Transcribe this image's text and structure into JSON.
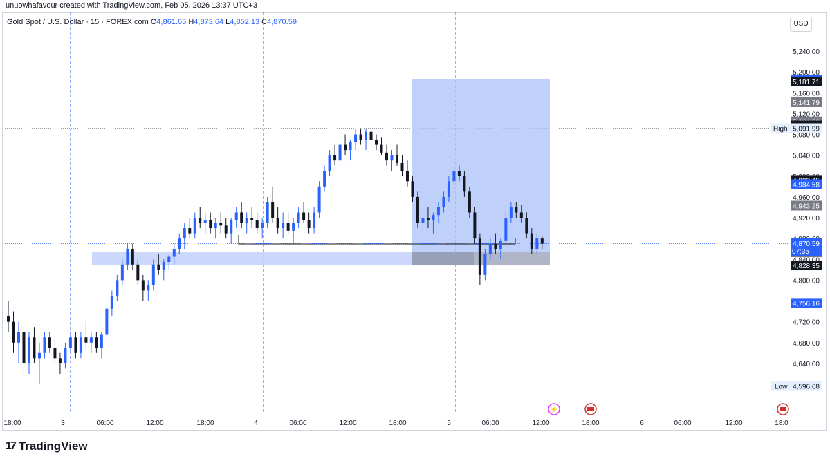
{
  "header": {
    "attribution": "unuowhafavour created with TradingView.com, Feb 05, 2026 13:37 UTC+3"
  },
  "legend": {
    "symbol": "Gold Spot / U.S. Dollar · 15 · FOREX.com",
    "o_label": "O",
    "o_value": "4,861.65",
    "h_label": "H",
    "h_value": "4,873.64",
    "l_label": "L",
    "l_value": "4,852.13",
    "c_label": "C",
    "c_value": "4,870.59"
  },
  "currency_button": "USD",
  "branding": {
    "name": "TradingView",
    "mark": "17"
  },
  "colors": {
    "up_candle": "#2962ff",
    "down_candle": "#131722",
    "zone_fill": "#c5d3fb",
    "box_fill": "#a9c0f8",
    "gray_zone": "#9e9e9e",
    "price_line": "#2962ff",
    "session_line": "#2962ff"
  },
  "chart_data": {
    "type": "candlestick",
    "symbol": "XAUUSD",
    "interval": "15",
    "y_axis_ticks": [
      5240,
      5200,
      5160,
      5120,
      5080,
      5040,
      5000,
      4960,
      4920,
      4880,
      4840,
      4800,
      4760,
      4720,
      4680,
      4640,
      4600
    ],
    "y_axis_tick_labels": [
      "5,240.00",
      "5,200.00",
      "5,160.00",
      "5,120.00",
      "5,080.00",
      "5,040.00",
      "5,000.00",
      "4,960.00",
      "4,920.00",
      "4,880.00",
      "4,840.00",
      "4,800.00",
      "4,760.00",
      "4,720.00",
      "4,680.00",
      "4,640.00",
      "4,600.00"
    ],
    "ylim": [
      4590,
      5260
    ],
    "x_ticks": [
      "18:00",
      "3",
      "06:00",
      "12:00",
      "18:00",
      "4",
      "06:00",
      "12:00",
      "18:00",
      "5",
      "06:00",
      "12:00",
      "18:00",
      "6",
      "06:00",
      "12:00",
      "18:0"
    ],
    "session_breaks": [
      "3",
      "4",
      "5"
    ],
    "high": {
      "label": "High",
      "value": "5,091.99",
      "price": 5091.99
    },
    "low": {
      "label": "Low",
      "value": "4,596.68",
      "price": 4596.68
    },
    "current_price": {
      "value": "4,870.59",
      "countdown": "07:35",
      "price": 4870.59
    },
    "price_labels": [
      {
        "value": "5,185.72",
        "price": 5185.72,
        "style": "blue"
      },
      {
        "value": "5,181.71",
        "price": 5181.71,
        "style": "black"
      },
      {
        "value": "5,141.79",
        "price": 5141.79,
        "style": "gray"
      },
      {
        "value": "5,104.98",
        "price": 5104.98,
        "style": "gray"
      },
      {
        "value": "5,097.24",
        "price": 5097.24,
        "style": "black"
      },
      {
        "value": "4,992.45",
        "price": 4992.45,
        "style": "black"
      },
      {
        "value": "4,984.58",
        "price": 4984.58,
        "style": "blue"
      },
      {
        "value": "4,943.25",
        "price": 4943.25,
        "style": "gray"
      },
      {
        "value": "4,853.55",
        "price": 4853.55,
        "style": "gray"
      },
      {
        "value": "4,828.35",
        "price": 4828.35,
        "style": "black"
      },
      {
        "value": "4,756.16",
        "price": 4756.16,
        "style": "blue"
      }
    ],
    "drawings": {
      "demand_zone": {
        "from": "3 03:30",
        "to": "5 13:00",
        "top": 4853.55,
        "bottom": 4828.35
      },
      "target_box": {
        "from": "4 21:00",
        "to": "5 13:00",
        "top": 5185.72,
        "bottom": 4828.35
      },
      "gray_zone": {
        "from": "4 21:00",
        "to": "5 13:00",
        "top": 4853.55,
        "bottom": 4828.35
      },
      "level_line": {
        "from": "4 00:00",
        "to": "5 11:00",
        "price": 4880
      }
    },
    "candles": [
      [
        4730,
        4760,
        4700,
        4720
      ],
      [
        4720,
        4740,
        4660,
        4680
      ],
      [
        4680,
        4720,
        4640,
        4700
      ],
      [
        4700,
        4710,
        4610,
        4640
      ],
      [
        4640,
        4700,
        4620,
        4690
      ],
      [
        4690,
        4710,
        4640,
        4650
      ],
      [
        4650,
        4680,
        4600,
        4660
      ],
      [
        4660,
        4700,
        4650,
        4690
      ],
      [
        4690,
        4700,
        4660,
        4670
      ],
      [
        4670,
        4690,
        4640,
        4650
      ],
      [
        4650,
        4660,
        4620,
        4640
      ],
      [
        4640,
        4680,
        4630,
        4670
      ],
      [
        4670,
        4700,
        4660,
        4690
      ],
      [
        4690,
        4700,
        4650,
        4660
      ],
      [
        4660,
        4700,
        4650,
        4690
      ],
      [
        4690,
        4720,
        4670,
        4680
      ],
      [
        4680,
        4700,
        4660,
        4690
      ],
      [
        4690,
        4700,
        4660,
        4670
      ],
      [
        4670,
        4700,
        4650,
        4695
      ],
      [
        4695,
        4750,
        4690,
        4745
      ],
      [
        4745,
        4780,
        4730,
        4770
      ],
      [
        4770,
        4810,
        4760,
        4800
      ],
      [
        4800,
        4840,
        4790,
        4830
      ],
      [
        4830,
        4870,
        4820,
        4860
      ],
      [
        4860,
        4870,
        4820,
        4830
      ],
      [
        4830,
        4840,
        4790,
        4800
      ],
      [
        4800,
        4810,
        4760,
        4780
      ],
      [
        4780,
        4800,
        4760,
        4790
      ],
      [
        4790,
        4840,
        4780,
        4830
      ],
      [
        4830,
        4850,
        4810,
        4820
      ],
      [
        4820,
        4840,
        4800,
        4835
      ],
      [
        4835,
        4850,
        4820,
        4845
      ],
      [
        4845,
        4870,
        4830,
        4860
      ],
      [
        4860,
        4890,
        4850,
        4880
      ],
      [
        4880,
        4910,
        4860,
        4900
      ],
      [
        4900,
        4920,
        4880,
        4890
      ],
      [
        4890,
        4930,
        4880,
        4920
      ],
      [
        4920,
        4940,
        4900,
        4910
      ],
      [
        4910,
        4930,
        4890,
        4915
      ],
      [
        4915,
        4930,
        4890,
        4900
      ],
      [
        4900,
        4920,
        4880,
        4910
      ],
      [
        4910,
        4930,
        4890,
        4905
      ],
      [
        4905,
        4920,
        4880,
        4890
      ],
      [
        4890,
        4920,
        4870,
        4915
      ],
      [
        4915,
        4940,
        4900,
        4930
      ],
      [
        4930,
        4950,
        4900,
        4910
      ],
      [
        4910,
        4930,
        4890,
        4920
      ],
      [
        4920,
        4940,
        4900,
        4915
      ],
      [
        4915,
        4930,
        4890,
        4900
      ],
      [
        4900,
        4920,
        4880,
        4910
      ],
      [
        4910,
        4960,
        4900,
        4950
      ],
      [
        4950,
        4980,
        4910,
        4920
      ],
      [
        4920,
        4940,
        4890,
        4900
      ],
      [
        4900,
        4930,
        4880,
        4910
      ],
      [
        4910,
        4930,
        4890,
        4895
      ],
      [
        4895,
        4920,
        4870,
        4910
      ],
      [
        4910,
        4940,
        4900,
        4930
      ],
      [
        4930,
        4950,
        4910,
        4915
      ],
      [
        4915,
        4930,
        4890,
        4900
      ],
      [
        4900,
        4940,
        4890,
        4930
      ],
      [
        4930,
        4990,
        4920,
        4980
      ],
      [
        4980,
        5020,
        4970,
        5010
      ],
      [
        5010,
        5050,
        5000,
        5040
      ],
      [
        5040,
        5060,
        5020,
        5030
      ],
      [
        5030,
        5070,
        5020,
        5060
      ],
      [
        5060,
        5080,
        5040,
        5050
      ],
      [
        5050,
        5070,
        5030,
        5065
      ],
      [
        5065,
        5090,
        5050,
        5080
      ],
      [
        5080,
        5092,
        5060,
        5070
      ],
      [
        5070,
        5090,
        5050,
        5085
      ],
      [
        5085,
        5092,
        5060,
        5070
      ],
      [
        5070,
        5080,
        5050,
        5060
      ],
      [
        5060,
        5075,
        5040,
        5045
      ],
      [
        5045,
        5060,
        5020,
        5030
      ],
      [
        5030,
        5050,
        5010,
        5040
      ],
      [
        5040,
        5060,
        5020,
        5025
      ],
      [
        5025,
        5040,
        5000,
        5010
      ],
      [
        5010,
        5030,
        4980,
        4990
      ],
      [
        4990,
        5000,
        4950,
        4960
      ],
      [
        4960,
        4970,
        4900,
        4910
      ],
      [
        4910,
        4930,
        4880,
        4920
      ],
      [
        4920,
        4940,
        4900,
        4915
      ],
      [
        4915,
        4930,
        4890,
        4925
      ],
      [
        4925,
        4950,
        4910,
        4940
      ],
      [
        4940,
        4970,
        4930,
        4960
      ],
      [
        4960,
        5000,
        4950,
        4990
      ],
      [
        4990,
        5020,
        4980,
        5010
      ],
      [
        5010,
        5020,
        4990,
        5000
      ],
      [
        5000,
        5010,
        4960,
        4970
      ],
      [
        4970,
        4980,
        4920,
        4930
      ],
      [
        4930,
        4940,
        4870,
        4880
      ],
      [
        4880,
        4890,
        4790,
        4810
      ],
      [
        4810,
        4860,
        4800,
        4850
      ],
      [
        4850,
        4880,
        4840,
        4870
      ],
      [
        4870,
        4890,
        4850,
        4860
      ],
      [
        4860,
        4880,
        4840,
        4875
      ],
      [
        4875,
        4930,
        4870,
        4920
      ],
      [
        4920,
        4950,
        4910,
        4940
      ],
      [
        4940,
        4950,
        4920,
        4930
      ],
      [
        4930,
        4945,
        4910,
        4920
      ],
      [
        4920,
        4930,
        4880,
        4890
      ],
      [
        4890,
        4900,
        4850,
        4860
      ],
      [
        4860,
        4890,
        4850,
        4880
      ],
      [
        4880,
        4885,
        4860,
        4870
      ]
    ]
  }
}
